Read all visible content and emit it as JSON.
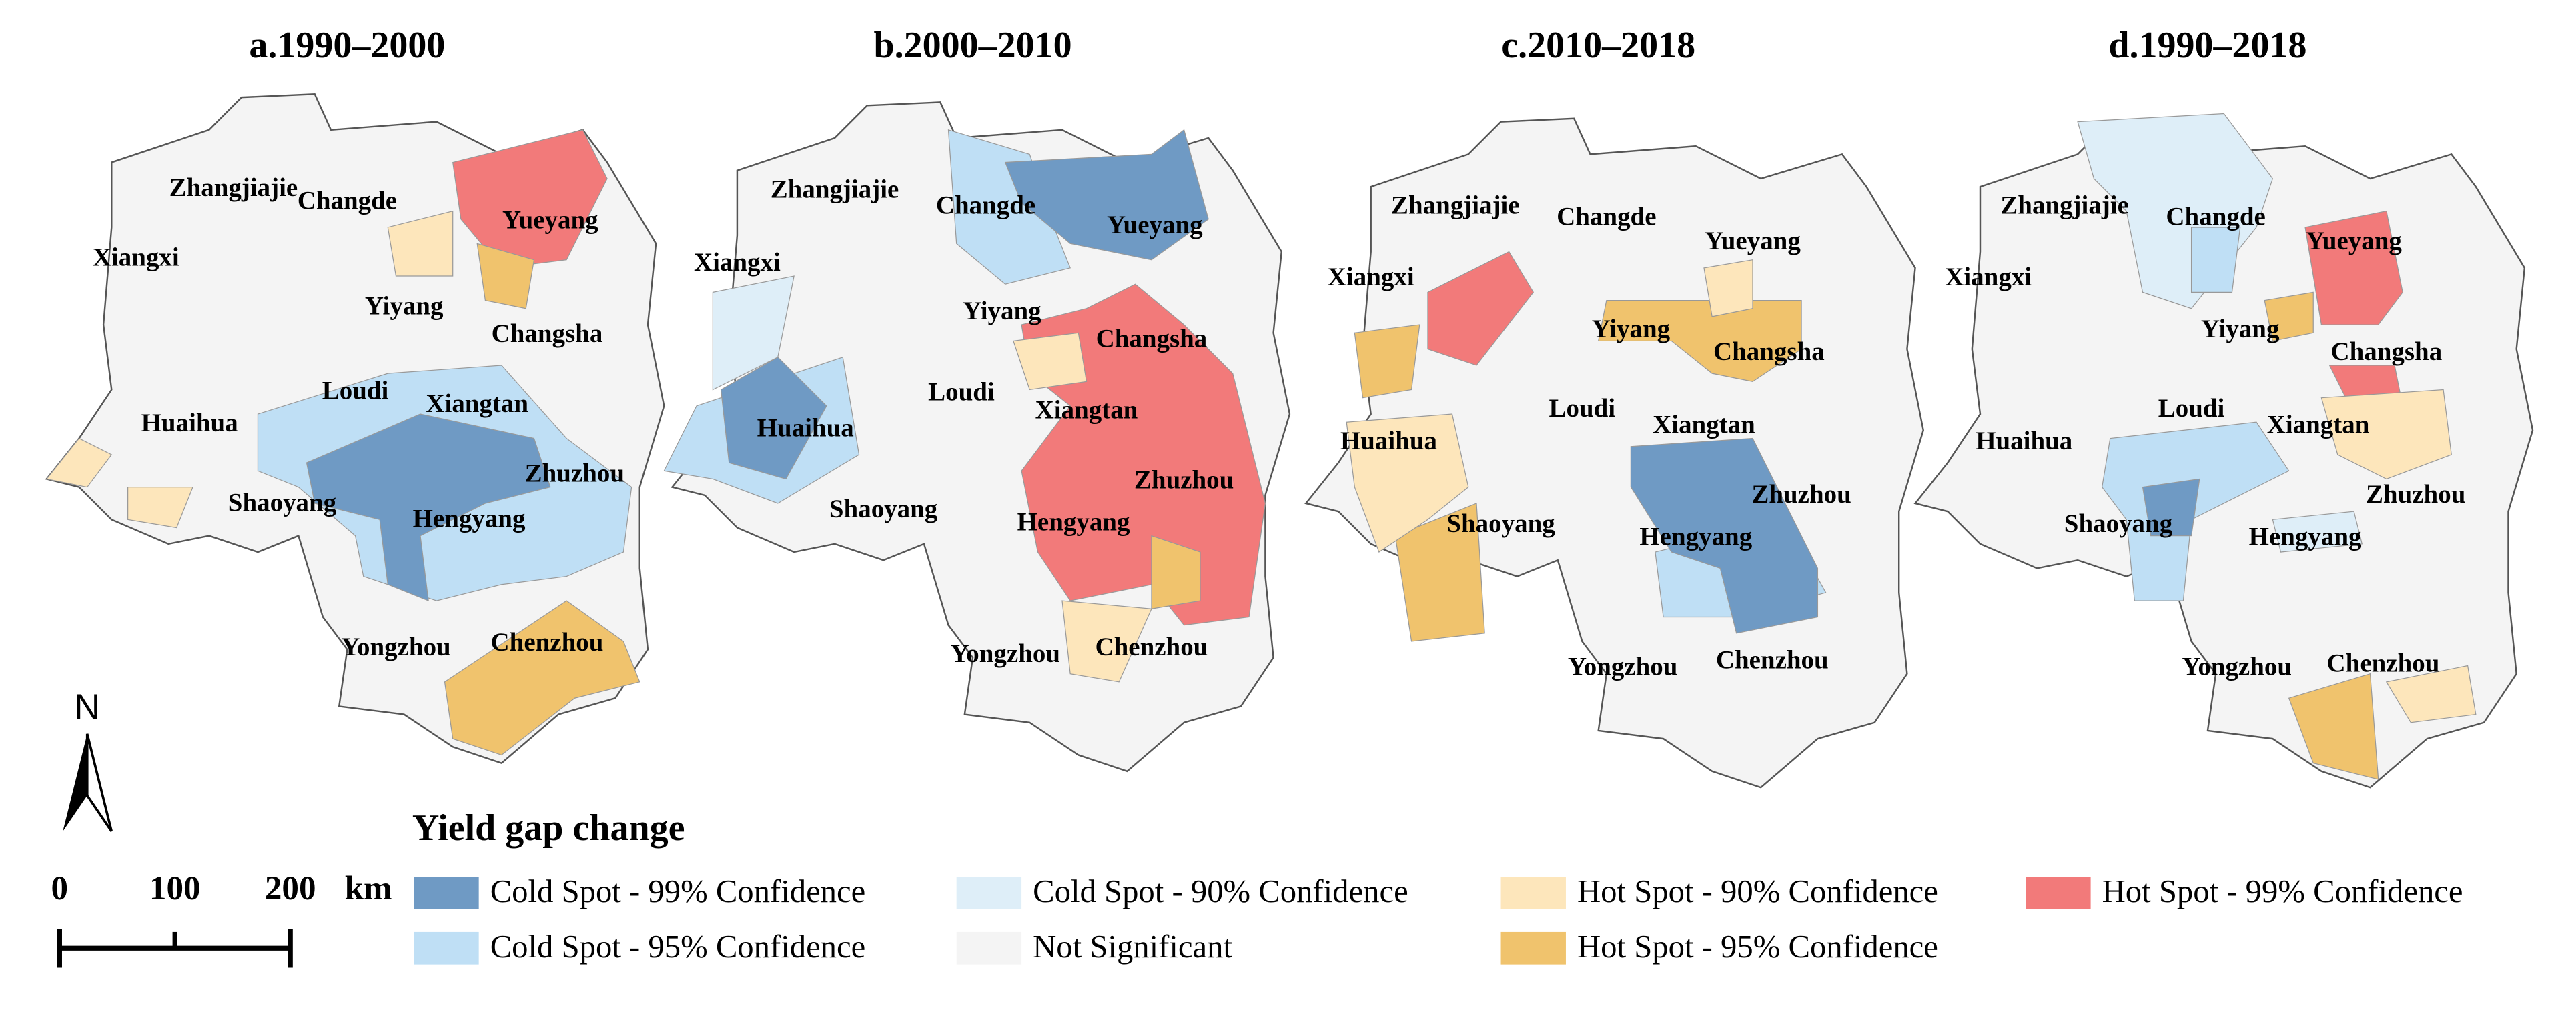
{
  "panels": [
    {
      "title": "a.1990–2000",
      "cities": [
        "Zhangjiajie",
        "Changde",
        "Yueyang",
        "Xiangxi",
        "Yiyang",
        "Changsha",
        "Loudi",
        "Xiangtan",
        "Huaihua",
        "Zhuzhou",
        "Shaoyang",
        "Hengyang",
        "Yongzhou",
        "Chenzhou"
      ]
    },
    {
      "title": "b.2000–2010",
      "cities": [
        "Zhangjiajie",
        "Changde",
        "Yueyang",
        "Xiangxi",
        "Yiyang",
        "Changsha",
        "Loudi",
        "Xiangtan",
        "Huaihua",
        "Zhuzhou",
        "Shaoyang",
        "Hengyang",
        "Yongzhou",
        "Chenzhou"
      ]
    },
    {
      "title": "c.2010–2018",
      "cities": [
        "Zhangjiajie",
        "Changde",
        "Yueyang",
        "Xiangxi",
        "Yiyang",
        "Changsha",
        "Loudi",
        "Xiangtan",
        "Huaihua",
        "Zhuzhou",
        "Shaoyang",
        "Hengyang",
        "Yongzhou",
        "Chenzhou"
      ]
    },
    {
      "title": "d.1990–2018",
      "cities": [
        "Zhangjiajie",
        "Changde",
        "Yueyang",
        "Xiangxi",
        "Yiyang",
        "Changsha",
        "Loudi",
        "Xiangtan",
        "Huaihua",
        "Zhuzhou",
        "Shaoyang",
        "Hengyang",
        "Yongzhou",
        "Chenzhou"
      ]
    }
  ],
  "legend": {
    "title": "Yield gap change",
    "items": [
      {
        "name": "Cold Spot - 99% Confidence",
        "color": "#6f9ac4"
      },
      {
        "name": "Cold Spot - 95% Confidence",
        "color": "#bfdff5"
      },
      {
        "name": "Cold Spot - 90% Confidence",
        "color": "#deeef8"
      },
      {
        "name": "Not Significant",
        "color": "#f4f4f4"
      },
      {
        "name": "Hot Spot - 90% Confidence",
        "color": "#fde6bb"
      },
      {
        "name": "Hot Spot - 95% Confidence",
        "color": "#f0c36d"
      },
      {
        "name": "Hot Spot - 99% Confidence",
        "color": "#f27a7a"
      }
    ]
  },
  "scale_bar": {
    "ticks": [
      "0",
      "100",
      "200"
    ],
    "unit": "km"
  },
  "north_label": "N"
}
